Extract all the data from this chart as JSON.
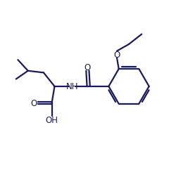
{
  "bg_color": "#ffffff",
  "line_color": "#1a1a5e",
  "line_width": 1.6,
  "font_size": 8.5,
  "figsize": [
    2.67,
    2.53
  ],
  "dpi": 100,
  "xlim": [
    0,
    10
  ],
  "ylim": [
    0,
    9.5
  ]
}
